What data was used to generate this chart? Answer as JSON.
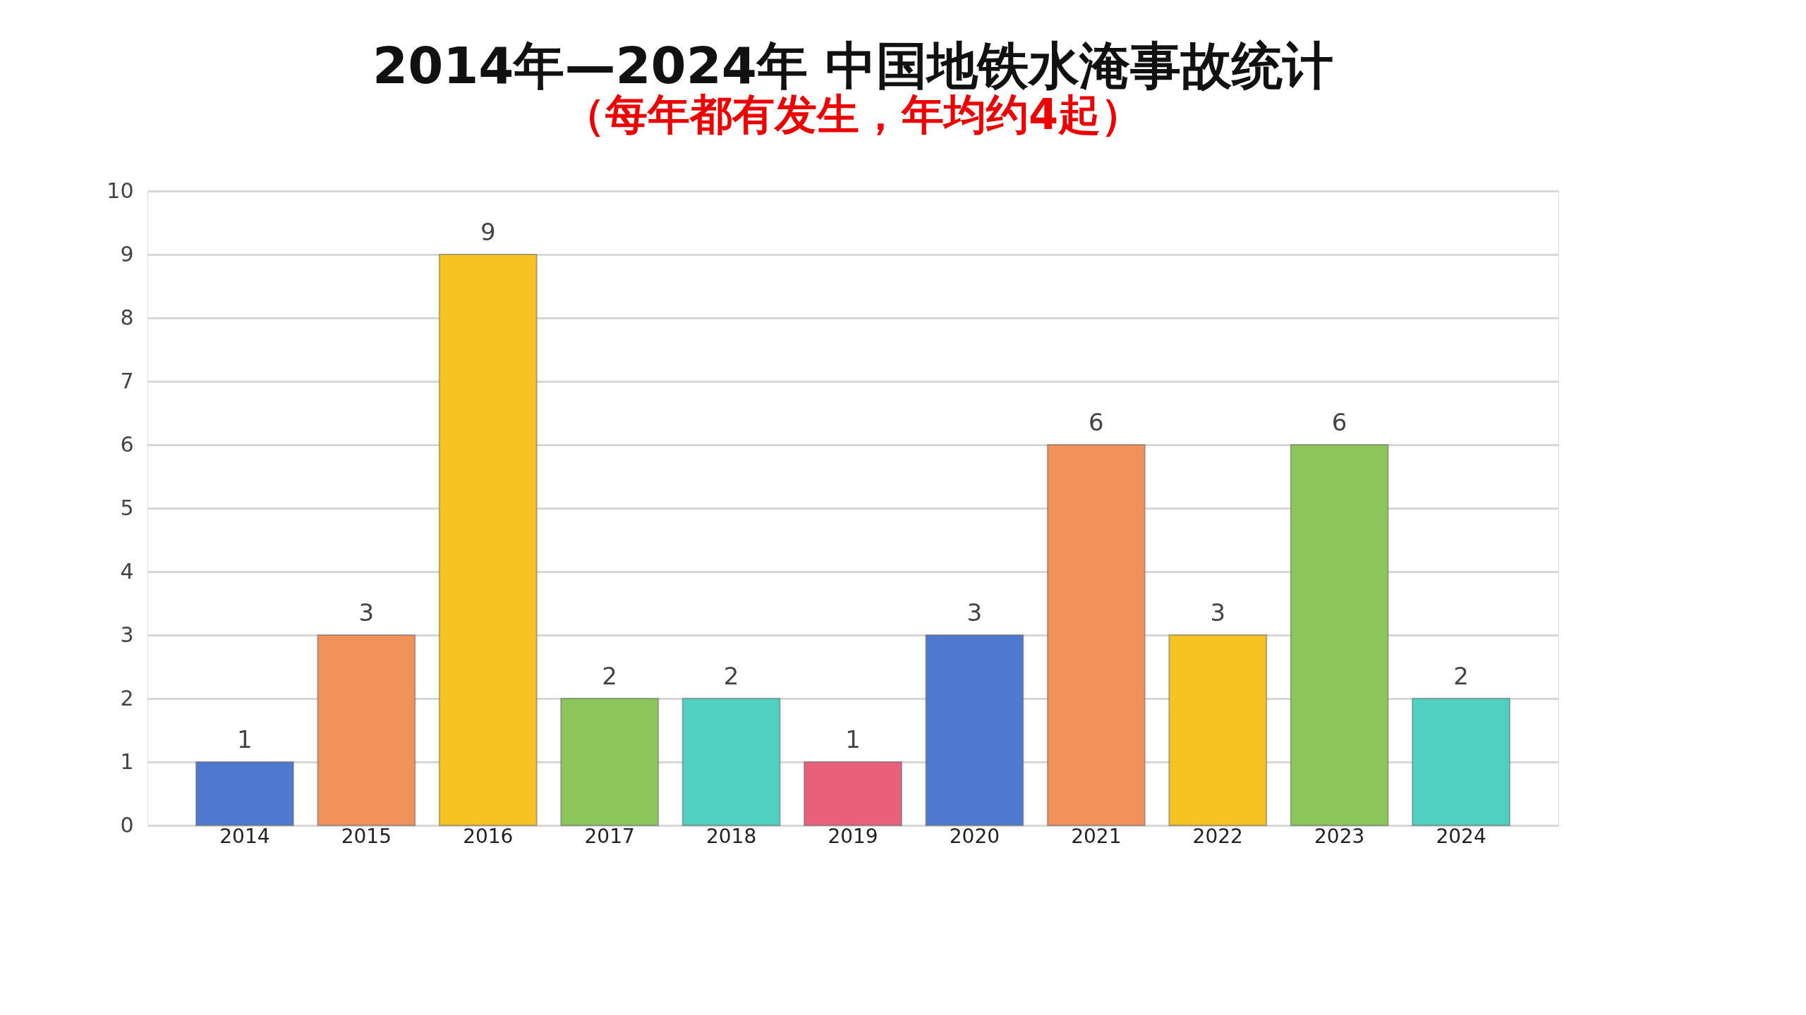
{
  "chart_data": {
    "type": "bar",
    "title": "2014年—2024年  中国地铁水淹事故统计",
    "subtitle": "（每年都有发生，年均约4起）",
    "categories": [
      "2014",
      "2015",
      "2016",
      "2017",
      "2018",
      "2019",
      "2020",
      "2021",
      "2022",
      "2023",
      "2024"
    ],
    "values": [
      1,
      3,
      9,
      2,
      2,
      1,
      3,
      6,
      3,
      6,
      2
    ],
    "colors": [
      "#4f78cf",
      "#f0925a",
      "#f5c422",
      "#8cc65a",
      "#4fd0c0",
      "#e8607a",
      "#4f78cf",
      "#f0925a",
      "#f5c422",
      "#8cc65a",
      "#4fd0c0"
    ],
    "ylim": [
      0,
      10
    ],
    "yticks": [
      0,
      1,
      2,
      3,
      4,
      5,
      6,
      7,
      8,
      9,
      10
    ],
    "grid": "y",
    "data_labels": true
  }
}
